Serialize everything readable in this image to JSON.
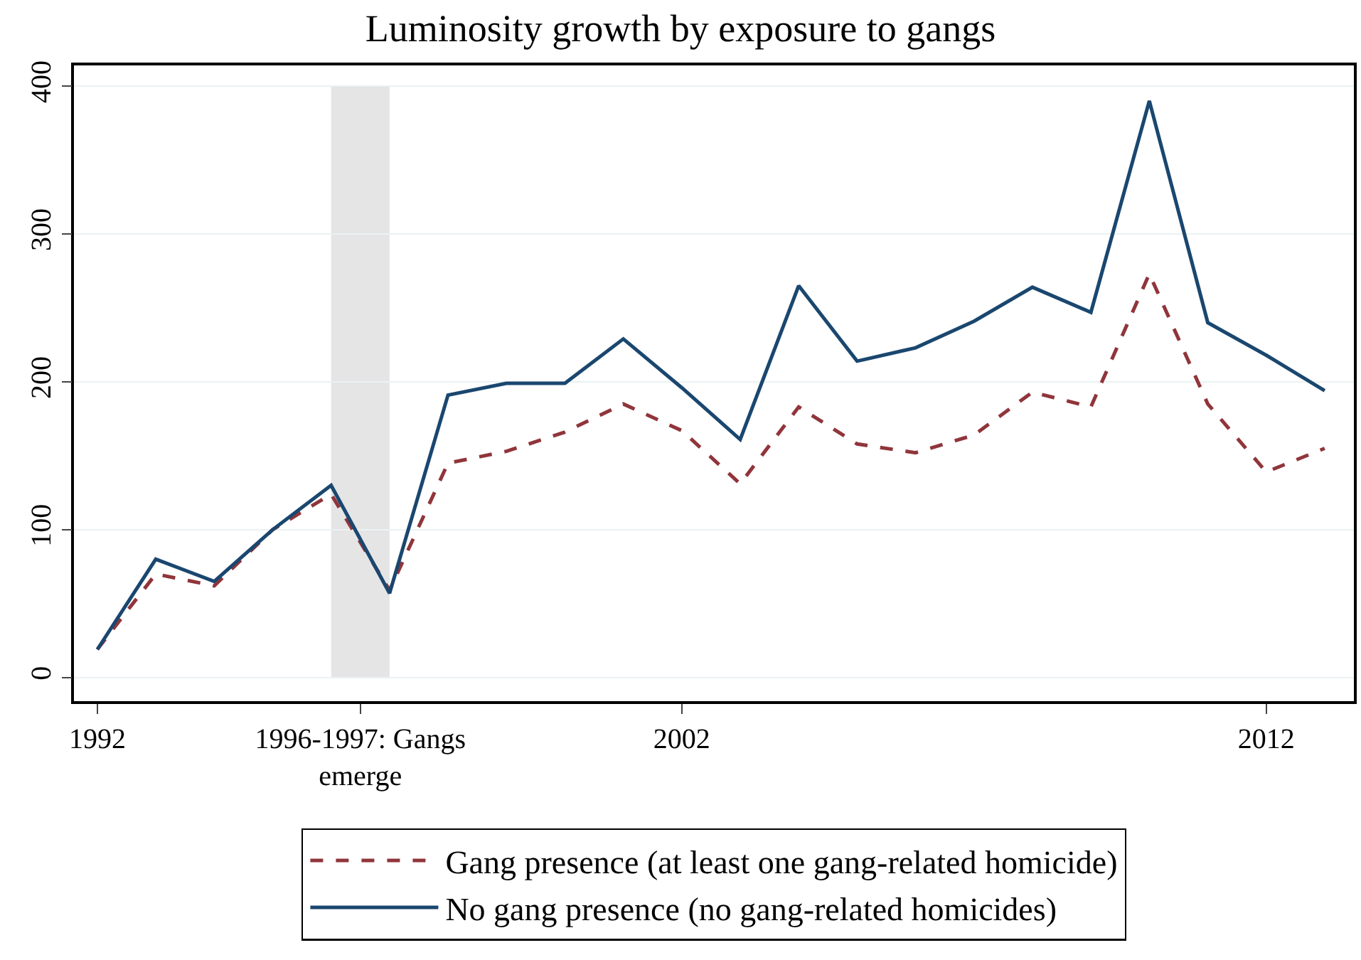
{
  "chart_data": {
    "type": "line",
    "title": "Luminosity growth by exposure to gangs",
    "x": [
      1992,
      1993,
      1994,
      1995,
      1996,
      1997,
      1998,
      1999,
      2000,
      2001,
      2002,
      2003,
      2004,
      2005,
      2006,
      2007,
      2008,
      2009,
      2010,
      2011,
      2012,
      2013
    ],
    "series": [
      {
        "name": "Gang presence (at least one gang-related homicide)",
        "color": "#90353b",
        "line_style": "dashed",
        "values": [
          19,
          70,
          62,
          100,
          124,
          59,
          145,
          153,
          166,
          185,
          167,
          131,
          183,
          158,
          152,
          164,
          193,
          183,
          273,
          185,
          139,
          155
        ]
      },
      {
        "name": "No gang presence (no gang-related homicides)",
        "color": "#1a476f",
        "line_style": "solid",
        "values": [
          19,
          80,
          65,
          100,
          130,
          57,
          191,
          199,
          199,
          229,
          196,
          161,
          265,
          214,
          223,
          241,
          264,
          247,
          390,
          240,
          218,
          194
        ]
      }
    ],
    "xlim": [
      1991.6,
      2013.5
    ],
    "xticks": [
      1992,
      {
        "value": 1996.5,
        "label": "1996-1997: Gangs\nemerge"
      },
      2002,
      2012
    ],
    "ylim": [
      -16,
      414
    ],
    "yticks": [
      0,
      100,
      200,
      300,
      400
    ],
    "bands": [
      {
        "axis": "x",
        "from": 1996,
        "to": 1997,
        "color": "#e5e5e5"
      }
    ],
    "grid": "y",
    "legend": "bottom",
    "marker": "none"
  }
}
